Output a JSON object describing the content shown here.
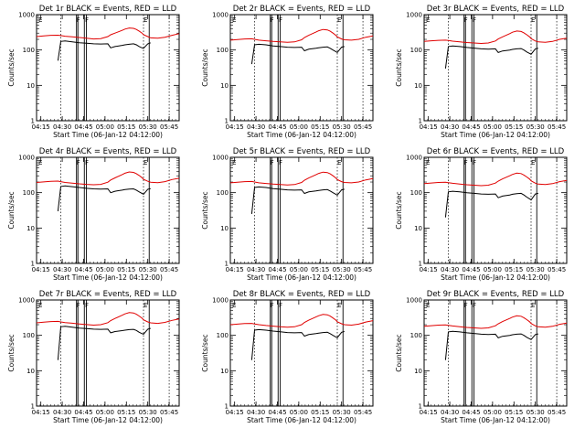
{
  "chart_data": {
    "type": "line",
    "layout": "3x3 grid",
    "xlabel": "Start Time (06-Jan-12 04:12:00)",
    "ylabel": "Counts/sec",
    "x_tick_labels": [
      "04:15",
      "04:30",
      "04:45",
      "05:00",
      "05:15",
      "05:30",
      "05:45"
    ],
    "x_ticks_min": [
      3,
      18,
      33,
      48,
      63,
      78,
      93
    ],
    "xlim_min": [
      0,
      100
    ],
    "y_scale": "log",
    "ylim": [
      1,
      1000
    ],
    "y_tick_labels": [
      "1",
      "10",
      "100",
      "1000"
    ],
    "y_tick_values": [
      1,
      10,
      100,
      1000
    ],
    "legend": "BLACK = Events, RED = LLD",
    "colors": {
      "events": "#000000",
      "lld": "#e00000"
    },
    "attenuator_markers": [
      {
        "label": "F",
        "x_min": 28
      },
      {
        "label": "F",
        "x_min": 34
      },
      {
        "label": "E",
        "x_min": 75
      }
    ],
    "vertical_lines_min": [
      17,
      28,
      29,
      33.5,
      35,
      75,
      79,
      93
    ],
    "series_x_min": [
      0,
      5,
      10,
      15,
      17,
      20,
      25,
      30,
      35,
      40,
      45,
      50,
      52,
      55,
      60,
      62,
      65,
      68,
      70,
      72,
      74,
      75,
      78,
      80,
      85,
      90,
      95,
      100
    ],
    "panels": [
      {
        "title": "Det 1r BLACK = Events, RED = LLD",
        "lld": [
          240,
          250,
          260,
          262,
          255,
          245,
          235,
          225,
          215,
          205,
          210,
          240,
          270,
          300,
          360,
          390,
          420,
          410,
          380,
          340,
          300,
          270,
          240,
          220,
          215,
          230,
          260,
          290
        ],
        "events": [
          null,
          null,
          null,
          50,
          175,
          180,
          170,
          160,
          155,
          150,
          148,
          150,
          115,
          125,
          135,
          140,
          145,
          150,
          140,
          125,
          115,
          112,
          150,
          160,
          null,
          null,
          null,
          null
        ]
      },
      {
        "title": "Det 2r BLACK = Events, RED = LLD",
        "lld": [
          190,
          198,
          205,
          208,
          200,
          190,
          182,
          175,
          170,
          165,
          170,
          195,
          225,
          260,
          320,
          350,
          380,
          370,
          340,
          300,
          260,
          235,
          205,
          195,
          190,
          200,
          230,
          250
        ],
        "events": [
          null,
          null,
          null,
          40,
          140,
          145,
          140,
          130,
          125,
          120,
          118,
          120,
          95,
          105,
          112,
          116,
          120,
          122,
          112,
          100,
          90,
          85,
          120,
          125,
          null,
          null,
          null,
          null
        ]
      },
      {
        "title": "Det 3r BLACK = Events, RED = LLD",
        "lld": [
          175,
          182,
          188,
          190,
          185,
          178,
          170,
          163,
          158,
          153,
          158,
          180,
          205,
          235,
          290,
          318,
          345,
          335,
          305,
          270,
          235,
          210,
          180,
          170,
          165,
          175,
          200,
          215
        ],
        "events": [
          null,
          null,
          null,
          30,
          125,
          130,
          125,
          118,
          113,
          108,
          106,
          108,
          85,
          94,
          100,
          104,
          108,
          110,
          100,
          88,
          80,
          76,
          108,
          112,
          null,
          null,
          null,
          null
        ]
      },
      {
        "title": "Det 4r BLACK = Events, RED = LLD",
        "lld": [
          195,
          202,
          210,
          212,
          205,
          195,
          186,
          178,
          172,
          168,
          172,
          198,
          228,
          262,
          325,
          355,
          385,
          375,
          345,
          305,
          265,
          238,
          210,
          198,
          192,
          205,
          235,
          255
        ],
        "events": [
          null,
          null,
          null,
          30,
          150,
          155,
          148,
          140,
          133,
          128,
          126,
          128,
          100,
          110,
          118,
          122,
          126,
          128,
          118,
          105,
          95,
          90,
          125,
          130,
          null,
          null,
          null,
          null
        ]
      },
      {
        "title": "Det 5r BLACK = Events, RED = LLD",
        "lld": [
          190,
          198,
          205,
          208,
          200,
          190,
          182,
          175,
          170,
          165,
          170,
          195,
          225,
          260,
          320,
          350,
          380,
          370,
          340,
          300,
          260,
          235,
          205,
          195,
          190,
          200,
          230,
          250
        ],
        "events": [
          null,
          null,
          null,
          25,
          140,
          145,
          140,
          130,
          125,
          120,
          118,
          120,
          95,
          105,
          112,
          116,
          120,
          122,
          112,
          100,
          90,
          85,
          120,
          125,
          null,
          null,
          null,
          null
        ]
      },
      {
        "title": "Det 6r BLACK = Events, RED = LLD",
        "lld": [
          180,
          188,
          195,
          198,
          192,
          184,
          176,
          168,
          163,
          158,
          163,
          186,
          212,
          245,
          300,
          328,
          356,
          346,
          315,
          278,
          242,
          216,
          185,
          175,
          170,
          180,
          205,
          222
        ],
        "events": [
          null,
          null,
          null,
          20,
          105,
          110,
          106,
          100,
          96,
          92,
          90,
          92,
          72,
          80,
          86,
          90,
          94,
          96,
          86,
          75,
          67,
          62,
          92,
          96,
          null,
          null,
          null,
          null
        ]
      },
      {
        "title": "Det 7r BLACK = Events, RED = LLD",
        "lld": [
          225,
          235,
          245,
          248,
          240,
          230,
          220,
          210,
          202,
          195,
          200,
          228,
          262,
          300,
          370,
          405,
          440,
          430,
          395,
          350,
          305,
          275,
          240,
          225,
          218,
          232,
          265,
          290
        ],
        "events": [
          null,
          null,
          null,
          20,
          175,
          180,
          170,
          160,
          155,
          150,
          148,
          150,
          118,
          128,
          136,
          140,
          145,
          148,
          138,
          122,
          112,
          108,
          150,
          158,
          null,
          null,
          null,
          null
        ]
      },
      {
        "title": "Det 8r BLACK = Events, RED = LLD",
        "lld": [
          200,
          208,
          215,
          218,
          210,
          200,
          190,
          182,
          176,
          170,
          175,
          200,
          232,
          268,
          330,
          360,
          390,
          380,
          350,
          310,
          270,
          242,
          212,
          200,
          195,
          208,
          238,
          260
        ],
        "events": [
          null,
          null,
          null,
          20,
          140,
          145,
          140,
          132,
          126,
          120,
          118,
          120,
          95,
          105,
          112,
          116,
          120,
          122,
          112,
          100,
          90,
          86,
          122,
          128,
          null,
          null,
          null,
          null
        ]
      },
      {
        "title": "Det 9r BLACK = Events, RED = LLD",
        "lld": [
          180,
          188,
          195,
          198,
          192,
          184,
          176,
          168,
          163,
          158,
          163,
          186,
          212,
          245,
          300,
          328,
          356,
          346,
          315,
          278,
          242,
          216,
          185,
          175,
          170,
          180,
          205,
          222
        ],
        "events": [
          null,
          null,
          null,
          20,
          125,
          130,
          125,
          118,
          113,
          108,
          106,
          108,
          85,
          94,
          100,
          104,
          108,
          110,
          100,
          88,
          80,
          76,
          105,
          110,
          null,
          null,
          null,
          null
        ]
      }
    ]
  }
}
